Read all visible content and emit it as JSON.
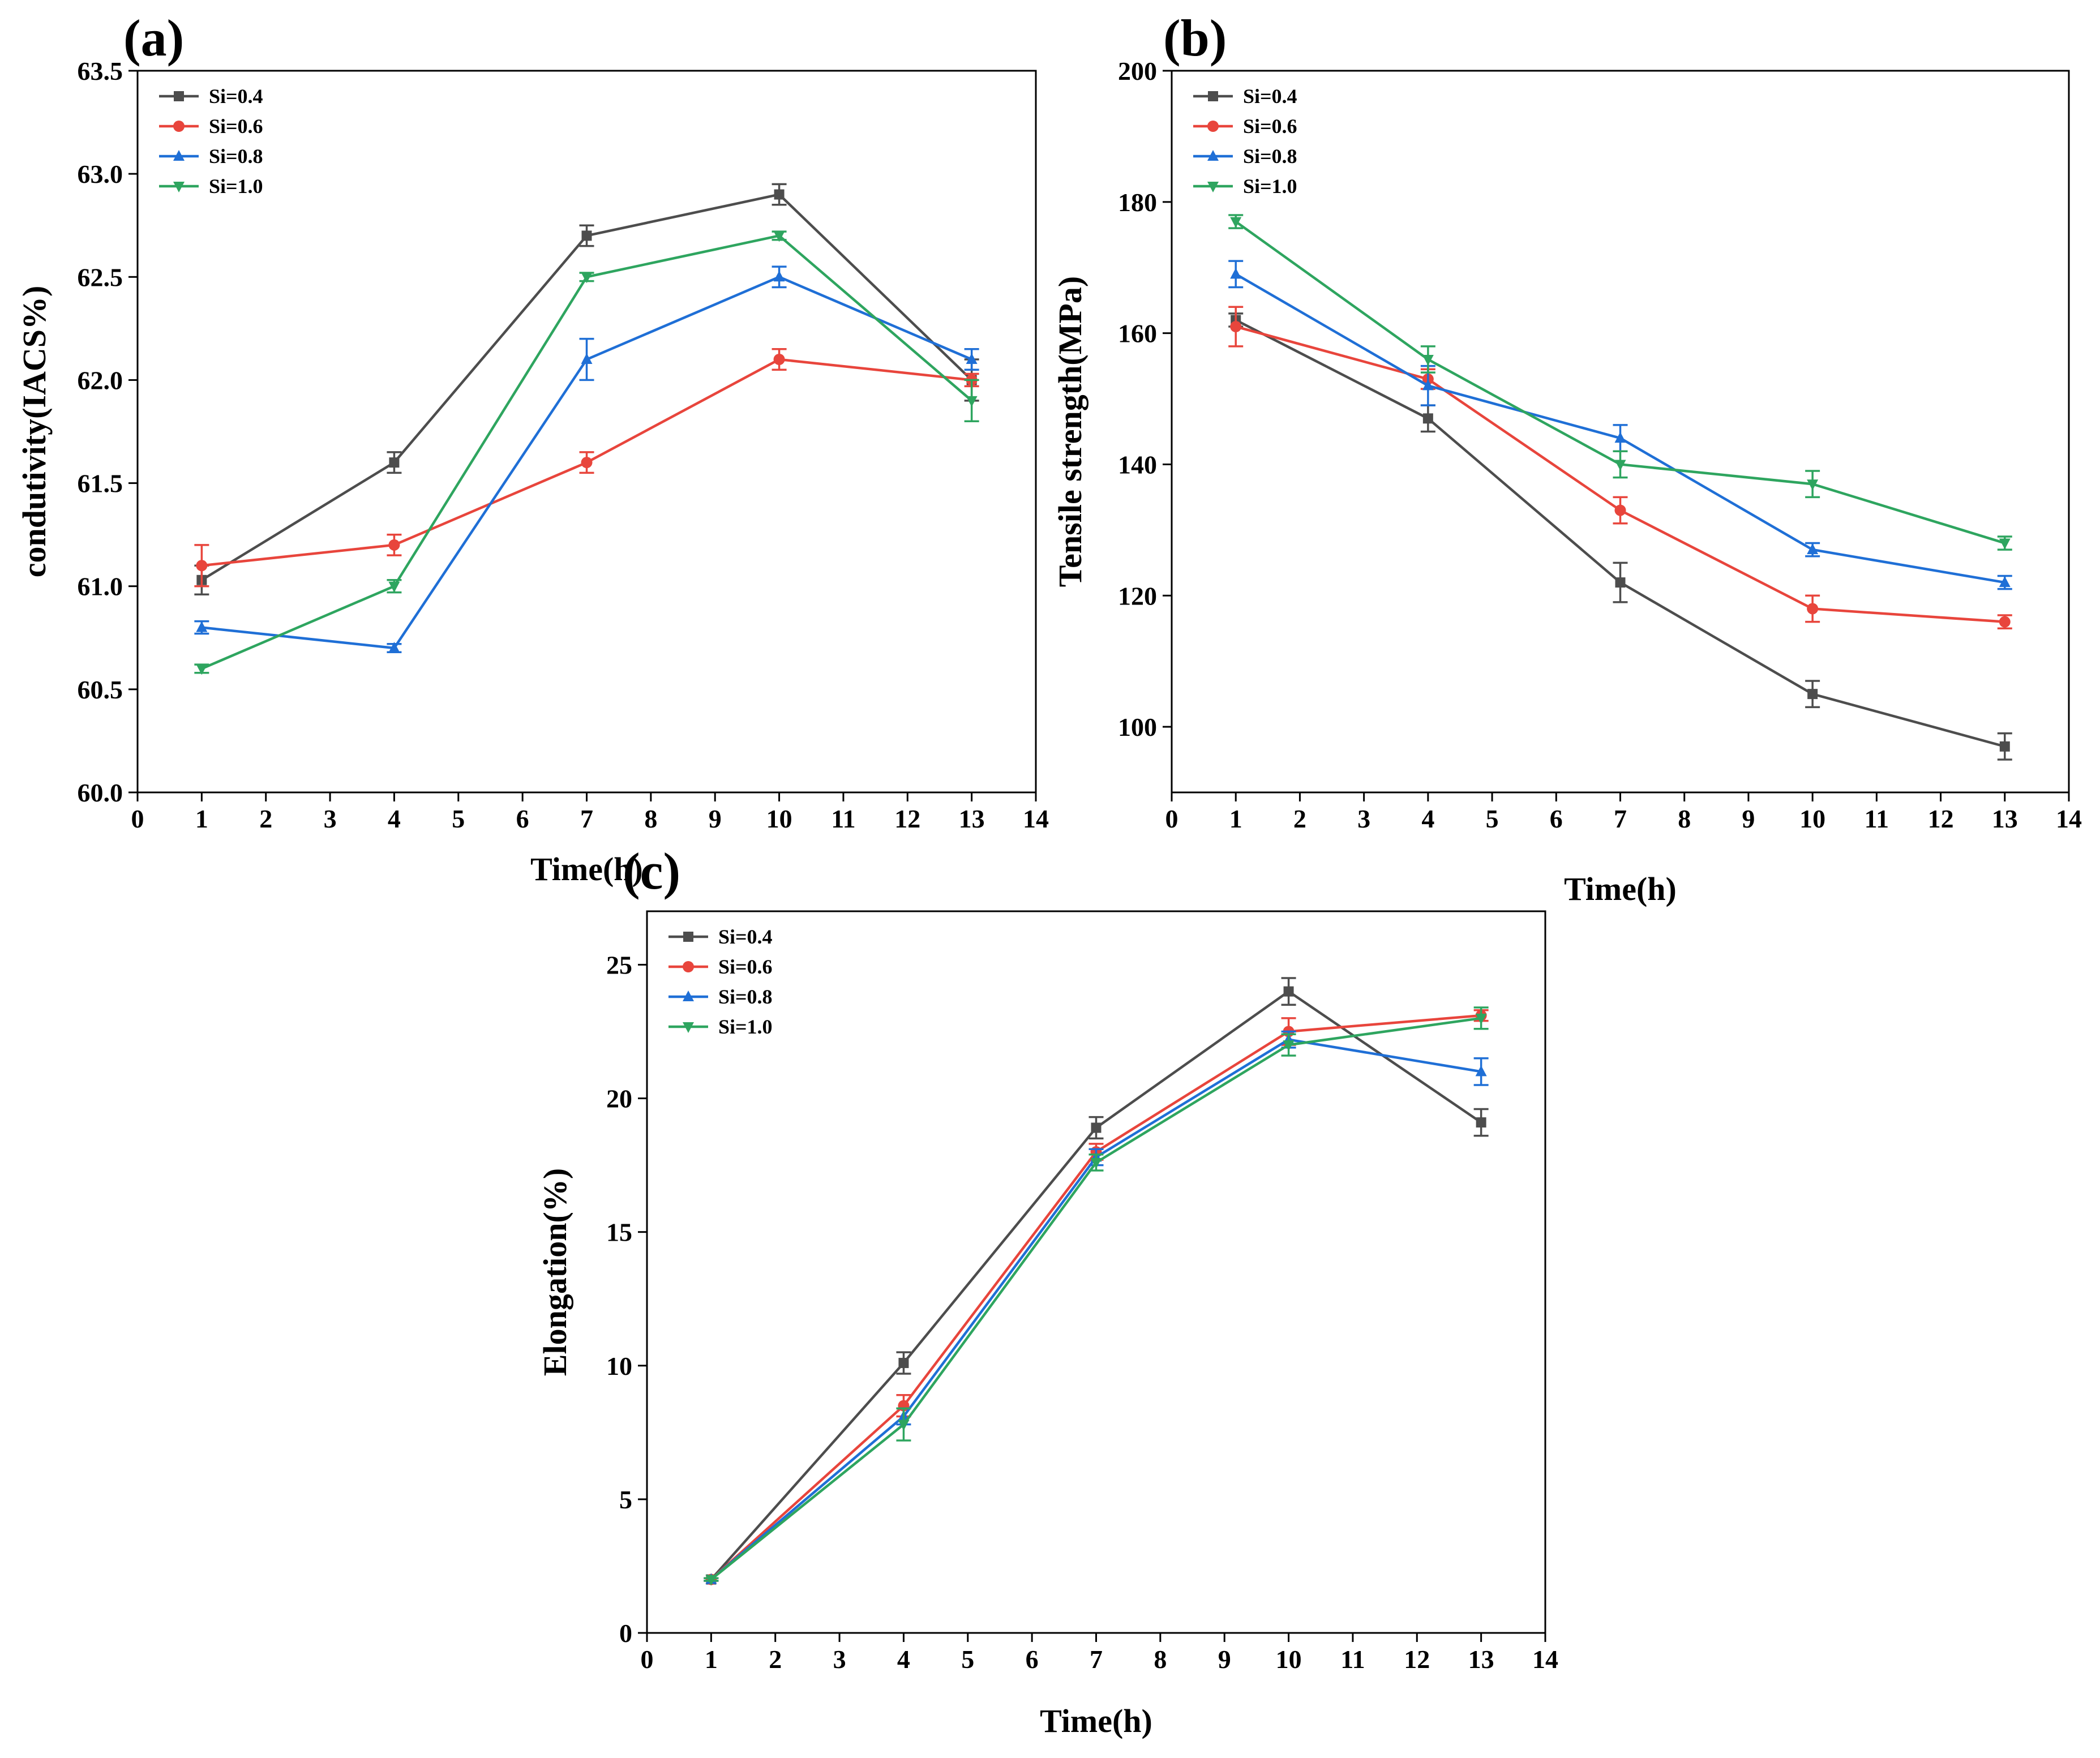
{
  "figure_title": "",
  "chart_data": [
    {
      "panel": "(a)",
      "type": "line",
      "title": "",
      "xlabel": "Time(h)",
      "ylabel": "condutivity(IACS%)",
      "xlim": [
        0,
        14
      ],
      "ylim": [
        60.0,
        63.5
      ],
      "xticks": [
        "0",
        "1",
        "2",
        "3",
        "4",
        "5",
        "6",
        "7",
        "8",
        "9",
        "10",
        "11",
        "12",
        "13",
        "14"
      ],
      "yticks": [
        "60.0",
        "60.5",
        "61.0",
        "61.5",
        "62.0",
        "62.5",
        "63.0",
        "63.5"
      ],
      "grid": false,
      "legend_position": "top-left",
      "x": [
        1,
        4,
        7,
        10,
        13
      ],
      "series": [
        {
          "name": "Si=0.4",
          "color": "#4d4d4d",
          "marker": "square",
          "values": [
            61.03,
            61.6,
            62.7,
            62.9,
            62.0
          ],
          "errors": [
            0.07,
            0.05,
            0.05,
            0.05,
            0.1
          ]
        },
        {
          "name": "Si=0.6",
          "color": "#e8453c",
          "marker": "circle",
          "values": [
            61.1,
            61.2,
            61.6,
            62.1,
            62.0
          ],
          "errors": [
            0.1,
            0.05,
            0.05,
            0.05,
            0.03
          ]
        },
        {
          "name": "Si=0.8",
          "color": "#1f6fd6",
          "marker": "triangle-up",
          "values": [
            60.8,
            60.7,
            62.1,
            62.5,
            62.1
          ],
          "errors": [
            0.03,
            0.02,
            0.1,
            0.05,
            0.05
          ]
        },
        {
          "name": "Si=1.0",
          "color": "#2ea55f",
          "marker": "triangle-down",
          "values": [
            60.6,
            61.0,
            62.5,
            62.7,
            61.9
          ],
          "errors": [
            0.02,
            0.03,
            0.02,
            0.02,
            0.1
          ]
        }
      ]
    },
    {
      "panel": "(b)",
      "type": "line",
      "title": "",
      "xlabel": "Time(h)",
      "ylabel": "Tensile strength(MPa)",
      "xlim": [
        0,
        14
      ],
      "ylim": [
        90,
        200
      ],
      "xticks": [
        "0",
        "1",
        "2",
        "3",
        "4",
        "5",
        "6",
        "7",
        "8",
        "9",
        "10",
        "11",
        "12",
        "13",
        "14"
      ],
      "yticks": [
        "100",
        "120",
        "140",
        "160",
        "180",
        "200"
      ],
      "grid": false,
      "legend_position": "top-left",
      "x": [
        1,
        4,
        7,
        10,
        13
      ],
      "series": [
        {
          "name": "Si=0.4",
          "color": "#4d4d4d",
          "marker": "square",
          "values": [
            162,
            147,
            122,
            105,
            97
          ],
          "errors": [
            1.0,
            2.0,
            3.0,
            2.0,
            2.0
          ]
        },
        {
          "name": "Si=0.6",
          "color": "#e8453c",
          "marker": "circle",
          "values": [
            161,
            153,
            133,
            118,
            116
          ],
          "errors": [
            3.0,
            1.5,
            2.0,
            2.0,
            1.0
          ]
        },
        {
          "name": "Si=0.8",
          "color": "#1f6fd6",
          "marker": "triangle-up",
          "values": [
            169,
            152,
            144,
            127,
            122
          ],
          "errors": [
            2.0,
            3.0,
            2.0,
            1.0,
            1.0
          ]
        },
        {
          "name": "Si=1.0",
          "color": "#2ea55f",
          "marker": "triangle-down",
          "values": [
            177,
            156,
            140,
            137,
            128
          ],
          "errors": [
            1.0,
            2.0,
            2.0,
            2.0,
            1.0
          ]
        }
      ]
    },
    {
      "panel": "(c)",
      "type": "line",
      "title": "",
      "xlabel": "Time(h)",
      "ylabel": "Elongation(%)",
      "xlim": [
        0,
        14
      ],
      "ylim": [
        0,
        27
      ],
      "xticks": [
        "0",
        "1",
        "2",
        "3",
        "4",
        "5",
        "6",
        "7",
        "8",
        "9",
        "10",
        "11",
        "12",
        "13",
        "14"
      ],
      "yticks": [
        "0",
        "5",
        "10",
        "15",
        "20",
        "25"
      ],
      "grid": false,
      "legend_position": "top-left",
      "x": [
        1,
        4,
        7,
        10,
        13
      ],
      "series": [
        {
          "name": "Si=0.4",
          "color": "#4d4d4d",
          "marker": "square",
          "values": [
            2.0,
            10.1,
            18.9,
            24.0,
            19.1
          ],
          "errors": [
            0.05,
            0.4,
            0.4,
            0.5,
            0.5
          ]
        },
        {
          "name": "Si=0.6",
          "color": "#e8453c",
          "marker": "circle",
          "values": [
            2.0,
            8.5,
            18.0,
            22.5,
            23.1
          ],
          "errors": [
            0.05,
            0.4,
            0.3,
            0.5,
            0.2
          ]
        },
        {
          "name": "Si=0.8",
          "color": "#1f6fd6",
          "marker": "triangle-up",
          "values": [
            2.0,
            8.1,
            17.8,
            22.2,
            21.0
          ],
          "errors": [
            0.05,
            0.3,
            0.3,
            0.3,
            0.5
          ]
        },
        {
          "name": "Si=1.0",
          "color": "#2ea55f",
          "marker": "triangle-down",
          "values": [
            2.0,
            7.8,
            17.6,
            22.0,
            23.0
          ],
          "errors": [
            0.05,
            0.6,
            0.3,
            0.4,
            0.4
          ]
        }
      ]
    }
  ]
}
